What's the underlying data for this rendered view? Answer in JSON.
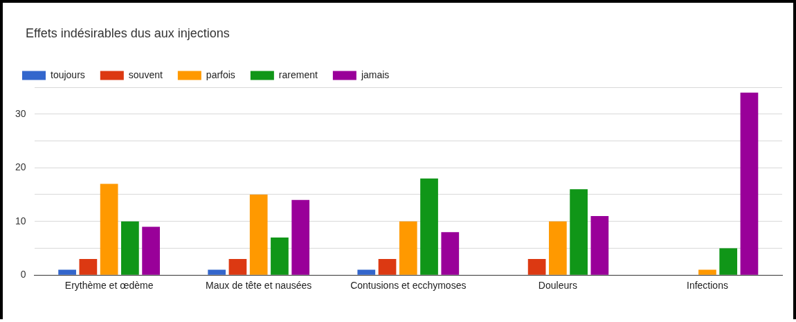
{
  "chart_data": {
    "type": "bar",
    "title": "Effets indésirables dus aux injections",
    "categories": [
      "Erythème et œdème",
      "Maux de tête et nausées",
      "Contusions et ecchymoses",
      "Douleurs",
      "Infections"
    ],
    "series": [
      {
        "name": "toujours",
        "color": "#3366cc",
        "values": [
          1,
          1,
          1,
          0,
          0
        ]
      },
      {
        "name": "souvent",
        "color": "#dc3912",
        "values": [
          3,
          3,
          3,
          3,
          0
        ]
      },
      {
        "name": "parfois",
        "color": "#ff9900",
        "values": [
          17,
          15,
          10,
          10,
          1
        ]
      },
      {
        "name": "rarement",
        "color": "#109618",
        "values": [
          10,
          7,
          18,
          16,
          5
        ]
      },
      {
        "name": "jamais",
        "color": "#990099",
        "values": [
          9,
          14,
          8,
          11,
          34
        ]
      }
    ],
    "ylim": [
      0,
      35
    ],
    "yticks": [
      0,
      {
        "value": 5,
        "label": null
      },
      10,
      {
        "value": 15,
        "label": null
      },
      20,
      {
        "value": 25,
        "label": null
      },
      30,
      {
        "value": 35,
        "label": null
      }
    ],
    "grid": "y",
    "legend": "top left"
  }
}
